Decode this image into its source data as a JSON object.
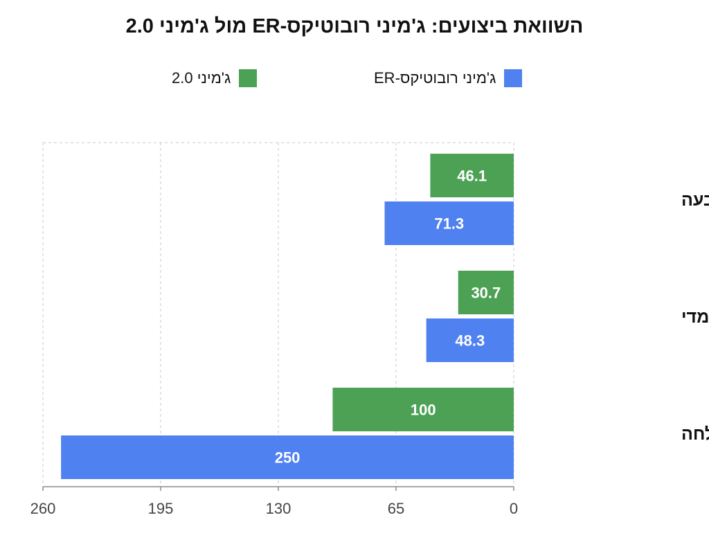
{
  "colors": {
    "series_a": "#4f81f0",
    "series_b": "#4ca154",
    "grid": "#c8c8c8",
    "axis": "#8a8a8a",
    "label_text": "#ffffff"
  },
  "chart_data": {
    "type": "bar",
    "orientation": "horizontal",
    "title": "השוואת ביצועים: ג'מיני רובוטיקס-ER מול ג'מיני 2.0",
    "xlabel": "",
    "ylabel": "",
    "categories": [
      "הצבעה",
      "זיהוי תלת-ממדי",
      "שיעור הצלחה"
    ],
    "series": [
      {
        "name": "ג'מיני 2.0",
        "values": [
          46.1,
          30.7,
          100
        ]
      },
      {
        "name": "ג'מיני רובוטיקס-ER",
        "values": [
          71.3,
          48.3,
          250
        ]
      }
    ],
    "xlim": [
      0,
      260
    ],
    "x_ticks": [
      0,
      65,
      130,
      195,
      260
    ],
    "x_axis_direction": "right-to-left",
    "grid": true,
    "legend_position": "top"
  }
}
